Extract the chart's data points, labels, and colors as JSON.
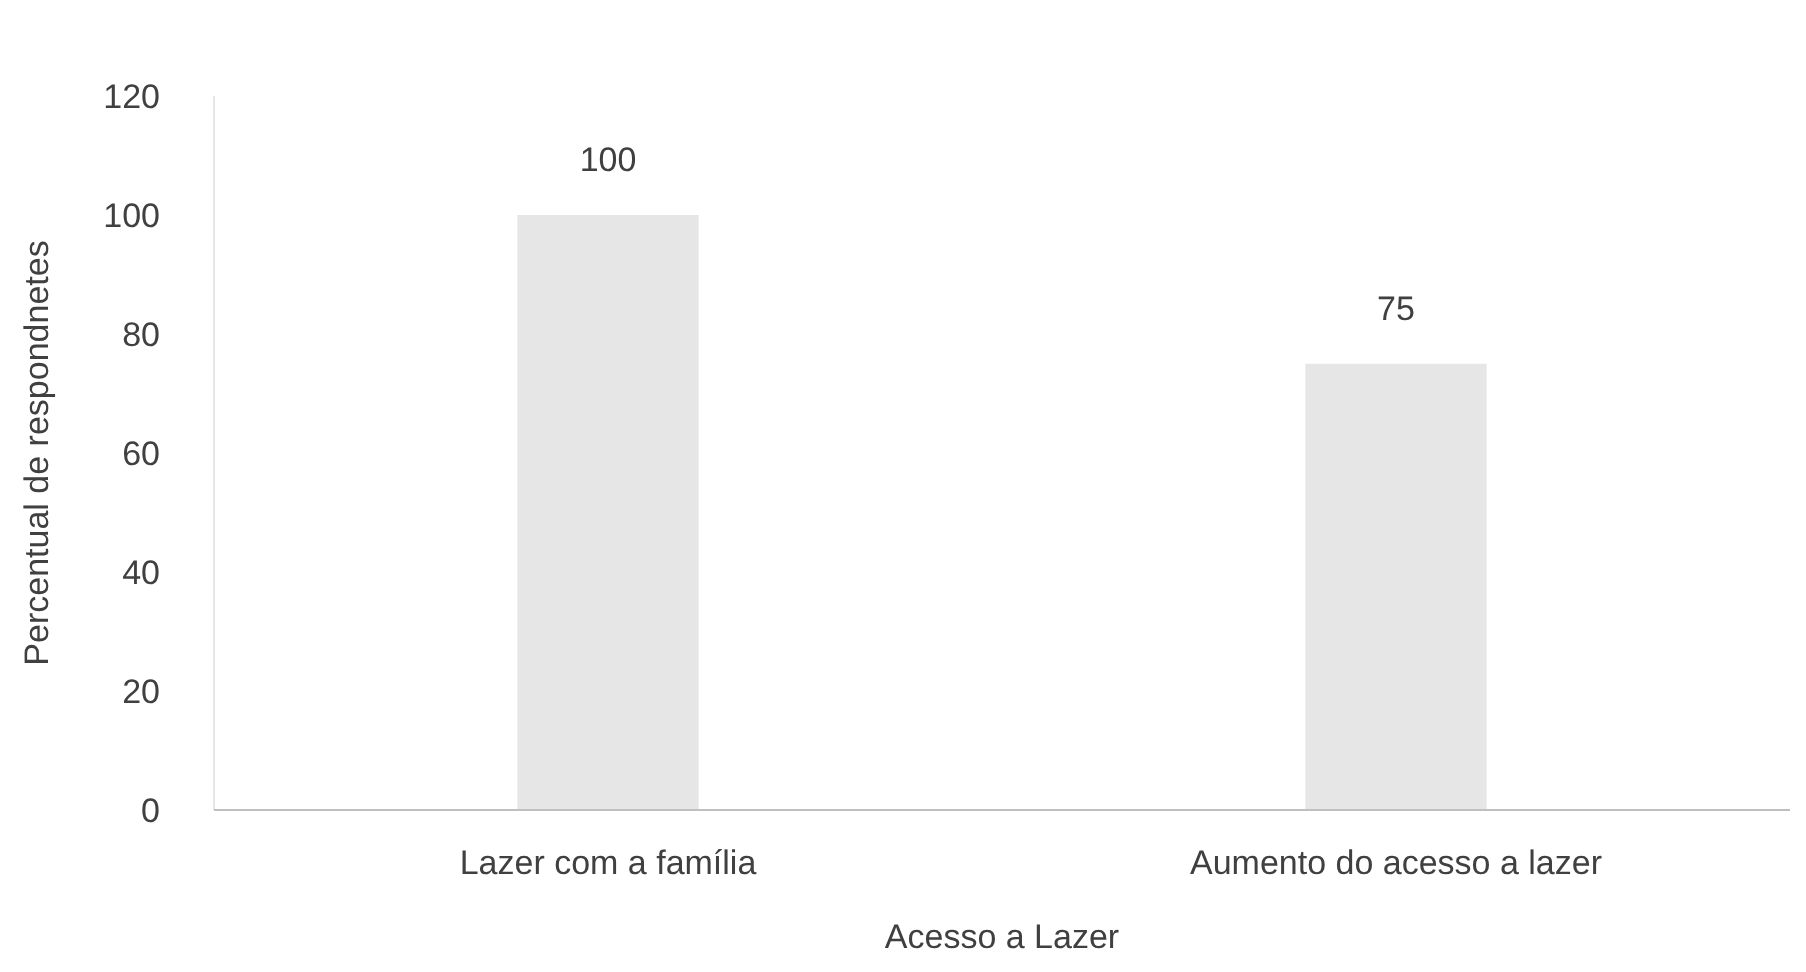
{
  "chart_data": {
    "type": "bar",
    "xlabel": "Acesso a Lazer",
    "ylabel": "Percentual de respondnetes",
    "categories": [
      "Lazer com a família",
      "Aumento do acesso a lazer"
    ],
    "values": [
      100,
      75
    ],
    "color": "#e6e6e6",
    "ylim": [
      0,
      120
    ],
    "yticks": [
      0,
      20,
      40,
      60,
      80,
      100,
      120
    ],
    "grid": false,
    "data_labels": true
  }
}
